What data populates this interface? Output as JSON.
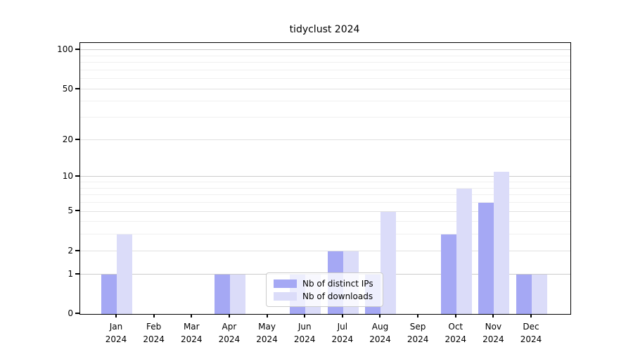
{
  "title": "tidyclust 2024",
  "chart_data": {
    "type": "bar",
    "title": "tidyclust 2024",
    "scale": "log1p",
    "year": "2024",
    "months": [
      "Jan",
      "Feb",
      "Mar",
      "Apr",
      "May",
      "Jun",
      "Jul",
      "Aug",
      "Sep",
      "Oct",
      "Nov",
      "Dec"
    ],
    "categories": [
      "Jan 2024",
      "Feb 2024",
      "Mar 2024",
      "Apr 2024",
      "May 2024",
      "Jun 2024",
      "Jul 2024",
      "Aug 2024",
      "Sep 2024",
      "Oct 2024",
      "Nov 2024",
      "Dec 2024"
    ],
    "series": [
      {
        "name": "Nb of distinct IPs",
        "color": "#a5a8f4",
        "values": [
          1,
          0,
          0,
          1,
          0,
          1,
          2,
          1,
          0,
          3,
          6,
          1
        ]
      },
      {
        "name": "Nb of downloads",
        "color": "#dbdcf9",
        "values": [
          3,
          0,
          0,
          1,
          0,
          1,
          2,
          5,
          0,
          8,
          11,
          1
        ]
      }
    ],
    "yticks": [
      0,
      1,
      2,
      5,
      10,
      20,
      50,
      100
    ],
    "minor_yticks": [
      3,
      4,
      6,
      7,
      8,
      9,
      30,
      40,
      60,
      70,
      80,
      90
    ],
    "ylim": [
      0,
      113
    ],
    "xlabel": "",
    "ylabel": "",
    "grid": true,
    "legend_position": "lower center"
  },
  "grid_colors": {
    "power_of_ten": "#cccccc",
    "labeled": "#e1e1e1",
    "minor": "#f0f0f0"
  }
}
